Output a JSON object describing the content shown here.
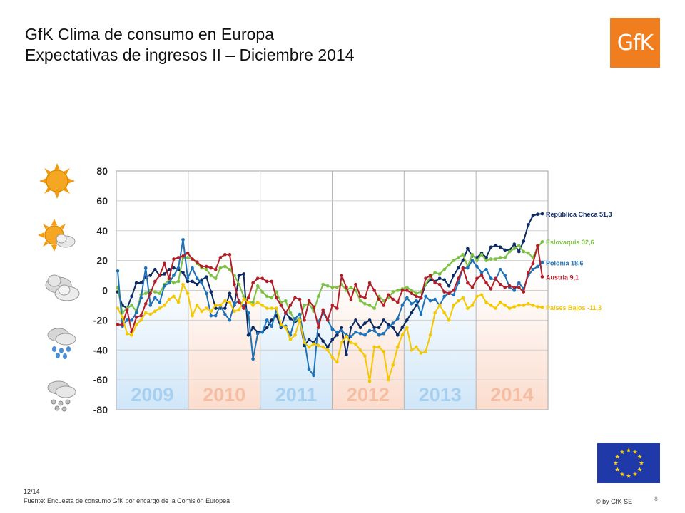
{
  "header": {
    "title_line1": "GfK Clima de consumo en Europa",
    "title_line2": "Expectativas de ingresos II – Diciembre 2014",
    "logo_text": "GfK"
  },
  "footer": {
    "date": "12/14",
    "source": "Fuente: Encuesta de consumo GfK por encargo de la Comisión Europea",
    "copyright": "© by GfK SE",
    "page": "8"
  },
  "icons": [
    "sun-icon",
    "sun-cloud-icon",
    "cloud-icon",
    "rain-icon",
    "snow-icon",
    "eu-flag-icon"
  ],
  "chart_data": {
    "type": "line",
    "ylim": [
      -80,
      80
    ],
    "yticks": [
      80,
      60,
      40,
      20,
      0,
      -20,
      -40,
      -60,
      -80
    ],
    "year_bands": [
      "2009",
      "2010",
      "2011",
      "2012",
      "2013",
      "2014"
    ],
    "band_colors": [
      "#cfe6f8",
      "#fbdccd",
      "#cfe6f8",
      "#fbdccd",
      "#cfe6f8",
      "#fbdccd"
    ],
    "series": [
      {
        "name": "República Checa 51,3",
        "label_color": "#0c2a63",
        "color": "#0c2a63",
        "values": [
          -1,
          -10,
          -12,
          -4,
          5,
          5,
          9,
          10,
          14,
          10,
          11,
          14,
          15,
          14,
          12,
          6,
          6,
          4,
          7,
          9,
          -1,
          -12,
          -12,
          -12,
          -2,
          -10,
          10,
          11,
          -30,
          -25,
          -28,
          -28,
          -25,
          -20,
          -17,
          -25,
          -15,
          -19,
          -21,
          -20,
          -37,
          -33,
          -35,
          -30,
          -34,
          -38,
          -33,
          -30,
          -25,
          -43,
          -25,
          -20,
          -25,
          -22,
          -20,
          -25,
          -25,
          -20,
          -23,
          -25,
          -30,
          -25,
          -20,
          -15,
          -10,
          -5,
          4,
          7,
          6,
          8,
          7,
          3,
          10,
          15,
          20,
          28,
          23,
          22,
          25,
          22,
          29,
          30,
          29,
          27,
          27,
          31,
          26,
          33,
          44,
          50,
          51,
          51.3
        ],
        "label": "República Checa 51,3"
      },
      {
        "name": "Eslovaquia 32,6",
        "label_color": "#7cc242",
        "color": "#7cc242",
        "values": [
          2,
          -15,
          -12,
          -10,
          -14,
          -3,
          -2,
          0,
          -1,
          -2,
          4,
          7,
          5,
          6,
          22,
          22,
          21,
          18,
          15,
          14,
          10,
          8,
          15,
          16,
          14,
          10,
          4,
          -4,
          -8,
          -8,
          3,
          -1,
          -4,
          -5,
          -1,
          -8,
          -7,
          -15,
          -20,
          -19,
          -10,
          -9,
          -14,
          -4,
          4,
          3,
          2,
          2,
          4,
          0,
          2,
          0,
          -7,
          -9,
          -10,
          -12,
          -4,
          -7,
          -5,
          -1,
          0,
          1,
          2,
          0,
          -2,
          -1,
          4,
          9,
          12,
          11,
          14,
          17,
          20,
          22,
          24,
          16,
          24,
          20,
          24,
          20,
          21,
          21,
          22,
          22,
          26,
          28,
          30,
          26,
          25,
          22,
          29,
          32.6
        ],
        "label": "Eslovaquia 32,6"
      },
      {
        "name": "Polonia 18,6",
        "label_color": "#1e72b8",
        "color": "#1e72b8",
        "values": [
          13,
          -24,
          -20,
          -20,
          -15,
          -5,
          15,
          -10,
          -5,
          -8,
          3,
          5,
          10,
          15,
          34,
          8,
          15,
          8,
          5,
          -2,
          -17,
          -17,
          -10,
          -16,
          -20,
          -9,
          -7,
          -10,
          -15,
          -46,
          -29,
          -28,
          -20,
          -24,
          -13,
          -24,
          -24,
          -30,
          -19,
          -16,
          -33,
          -53,
          -57,
          -21,
          -15,
          -20,
          -26,
          -28,
          -27,
          -30,
          -31,
          -28,
          -29,
          -30,
          -27,
          -27,
          -30,
          -29,
          -25,
          -22,
          -19,
          -10,
          -5,
          -9,
          -7,
          -16,
          -4,
          -7,
          -6,
          -10,
          -4,
          -2,
          -3,
          5,
          15,
          15,
          20,
          16,
          12,
          14,
          8,
          7,
          14,
          10,
          2,
          0,
          5,
          1,
          10,
          14,
          16,
          18.6
        ],
        "label": "Polonia 18,6"
      },
      {
        "name": "Austria 9,1",
        "label_color": "#b21e28",
        "color": "#b21e28",
        "values": [
          -23,
          -23,
          -13,
          -28,
          -18,
          -17,
          -9,
          -2,
          6,
          10,
          18,
          8,
          21,
          22,
          23,
          25,
          21,
          19,
          16,
          16,
          15,
          14,
          22,
          24,
          24,
          4,
          -8,
          -12,
          -5,
          5,
          8,
          8,
          6,
          6,
          -5,
          -10,
          -15,
          -10,
          -5,
          -6,
          -20,
          -7,
          -11,
          -25,
          -13,
          -20,
          -10,
          -12,
          10,
          2,
          -6,
          4,
          -4,
          -5,
          5,
          0,
          -6,
          -10,
          -3,
          -6,
          -8,
          0,
          0,
          -2,
          -4,
          -5,
          8,
          10,
          5,
          4,
          -1,
          -2,
          0,
          8,
          15,
          5,
          2,
          8,
          10,
          5,
          1,
          8,
          4,
          2,
          3,
          2,
          2,
          -1,
          12,
          18,
          30,
          9.1
        ],
        "label": "Austria 9,1"
      },
      {
        "name": "Países Bajos -11,3",
        "label_color": "#f5c800",
        "color": "#f5c800",
        "values": [
          -12,
          -18,
          -29,
          -30,
          -23,
          -20,
          -15,
          -16,
          -14,
          -12,
          -10,
          -6,
          -4,
          -8,
          4,
          -2,
          -17,
          -10,
          -14,
          -12,
          -14,
          -10,
          -10,
          -7,
          -8,
          -14,
          -13,
          -6,
          -8,
          -10,
          -8,
          -10,
          -12,
          -12,
          -12,
          -23,
          -25,
          -33,
          -30,
          -20,
          -35,
          -38,
          -36,
          -37,
          -38,
          -40,
          -45,
          -48,
          -35,
          -31,
          -35,
          -36,
          -40,
          -44,
          -61,
          -38,
          -38,
          -41,
          -60,
          -50,
          -38,
          -30,
          -25,
          -40,
          -38,
          -42,
          -41,
          -30,
          -15,
          -10,
          -15,
          -20,
          -10,
          -7,
          -5,
          -12,
          -10,
          -4,
          -3,
          -8,
          -10,
          -12,
          -8,
          -10,
          -12,
          -11,
          -10,
          -10,
          -9,
          -10,
          -11,
          -11.3
        ],
        "label": "Países Bajos -11,3"
      }
    ]
  }
}
